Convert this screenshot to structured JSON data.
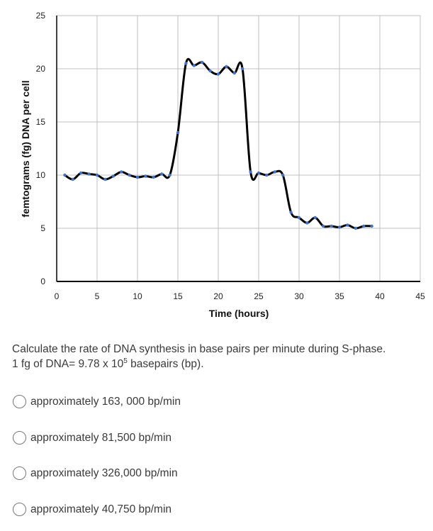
{
  "chart_data": {
    "type": "line",
    "title": "",
    "xlabel": "Time (hours)",
    "ylabel": "femtograms (fg) DNA per cell",
    "xlim": [
      0,
      45
    ],
    "ylim": [
      0,
      25
    ],
    "xticks": [
      "0",
      "5",
      "10",
      "15",
      "20",
      "25",
      "30",
      "35",
      "40",
      "45"
    ],
    "yticks": [
      "0",
      "5",
      "10",
      "15",
      "20",
      "25"
    ],
    "grid": true,
    "series": [
      {
        "name": "DNA per cell",
        "color": "#000000",
        "marker_color": "#4472c4",
        "x": [
          1,
          2,
          3,
          4,
          5,
          6,
          7,
          8,
          9,
          10,
          11,
          12,
          13,
          14,
          15,
          16,
          17,
          18,
          19,
          20,
          21,
          22,
          23,
          24,
          25,
          26,
          27,
          28,
          29,
          30,
          31,
          32,
          33,
          34,
          35,
          36,
          37,
          38,
          39
        ],
        "y": [
          10,
          9.6,
          10.2,
          10.1,
          10,
          9.6,
          9.9,
          10.3,
          10,
          9.8,
          9.9,
          9.8,
          10.1,
          10,
          14,
          20.5,
          20.3,
          20.6,
          19.8,
          19.5,
          20.2,
          19.6,
          20,
          10.3,
          10.2,
          10,
          10.3,
          10,
          6.5,
          6,
          5.5,
          6,
          5.2,
          5.2,
          5.1,
          5.3,
          5,
          5.2,
          5.2
        ]
      }
    ]
  },
  "question": {
    "line1": "Calculate the rate of DNA synthesis in base pairs per minute during S-phase.",
    "line2_prefix": "1 fg of DNA= 9.78 x 10",
    "line2_exp": "5",
    "line2_suffix": " basepairs (bp)."
  },
  "options": [
    {
      "label": "approximately 163, 000 bp/min"
    },
    {
      "label": "approximately 81,500 bp/min"
    },
    {
      "label": "approximately 326,000 bp/min"
    },
    {
      "label": "approximately 40,750 bp/min"
    }
  ]
}
